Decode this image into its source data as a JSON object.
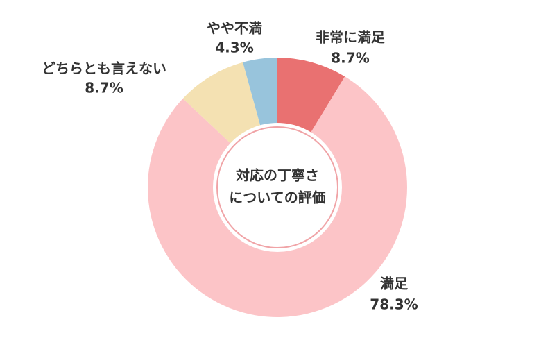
{
  "chart_data": {
    "type": "donut",
    "center_text": [
      "対応の丁寧さ",
      "についての評価"
    ],
    "categories": [
      "非常に満足",
      "満足",
      "どちらとも言えない",
      "やや不満"
    ],
    "values": [
      8.7,
      78.3,
      8.7,
      4.3
    ],
    "value_labels": [
      "8.7%",
      "78.3%",
      "8.7%",
      "4.3%"
    ],
    "colors": [
      "#e97171",
      "#fcc4c7",
      "#f4e1b2",
      "#98c4dc"
    ]
  }
}
